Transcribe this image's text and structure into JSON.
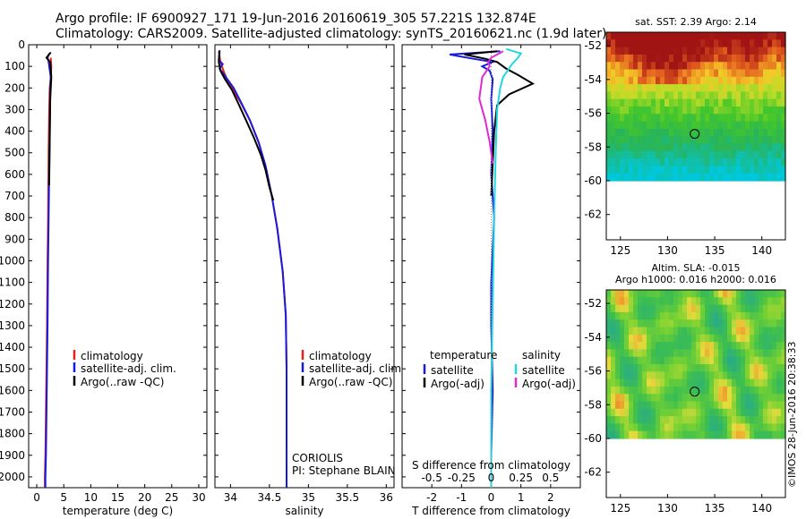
{
  "header": {
    "title_line1": "Argo profile: IF 6900927_171 19-Jun-2016 20160619_305 57.221S 132.874E",
    "title_line2": "Climatology: CARS2009. Satellite-adjusted climatology: synTS_20160621.nc (1.9d later)"
  },
  "colors": {
    "climatology": "#e8201a",
    "satellite": "#1a1adc",
    "argo": "#000000",
    "salinity_satellite": "#22d8e0",
    "salinity_argo": "#e02ad0"
  },
  "depth_axis": {
    "ylim": [
      0,
      2050
    ],
    "ticks": [
      "0",
      "100",
      "200",
      "300",
      "400",
      "500",
      "600",
      "700",
      "800",
      "900",
      "1000",
      "1100",
      "1200",
      "1300",
      "1400",
      "1500",
      "1600",
      "1700",
      "1800",
      "1900",
      "2000"
    ]
  },
  "chart_data": [
    {
      "id": "temperature",
      "type": "line",
      "xlabel": "temperature (deg C)",
      "xlim": [
        -1.5,
        31.5
      ],
      "xticks": [
        0,
        5,
        10,
        15,
        20,
        25,
        30
      ],
      "xtick_labels": [
        "0",
        "5",
        "10",
        "15",
        "20",
        "25",
        "30"
      ],
      "legend": [
        "climatology",
        "satellite-adj. clim.",
        "Argo(..raw -QC)"
      ],
      "series": [
        {
          "name": "climatology",
          "color_key": "climatology",
          "x": [
            2.6,
            2.7,
            2.6,
            2.4,
            2.3,
            2.2,
            2.1,
            2.0,
            1.9,
            1.8,
            1.7,
            1.6,
            1.5,
            1.5
          ],
          "depth": [
            60,
            100,
            150,
            200,
            300,
            500,
            800,
            1000,
            1300,
            1500,
            1700,
            1900,
            2000,
            2050
          ]
        },
        {
          "name": "satellite-adj. clim.",
          "color_key": "satellite",
          "x": [
            2.3,
            2.0,
            2.2,
            2.6,
            2.5,
            2.4,
            2.3,
            2.1,
            2.0,
            1.9,
            1.8,
            1.7,
            1.6,
            1.6
          ],
          "depth": [
            40,
            60,
            80,
            150,
            200,
            400,
            600,
            1000,
            1300,
            1500,
            1700,
            1900,
            2000,
            2050
          ]
        },
        {
          "name": "Argo(..raw -QC)",
          "color_key": "argo",
          "x": [
            2.6,
            1.8,
            2.5,
            2.7,
            2.5,
            2.4,
            2.3
          ],
          "depth": [
            35,
            60,
            80,
            150,
            250,
            450,
            650
          ]
        }
      ]
    },
    {
      "id": "salinity",
      "type": "line",
      "xlabel": "salinity",
      "xlim": [
        33.8,
        36.1
      ],
      "xticks": [
        34,
        34.5,
        35,
        35.5,
        36
      ],
      "xtick_labels": [
        "34",
        "34.5",
        "35",
        "35.5",
        "36"
      ],
      "legend": [
        "climatology",
        "satellite-adj. clim.",
        "Argo(..raw -QC)"
      ],
      "annotation": [
        "CORIOLIS",
        "PI: Stephane BLAIN"
      ],
      "series": [
        {
          "name": "climatology",
          "color_key": "climatology",
          "x": [
            33.85,
            33.87,
            33.92,
            33.98,
            34.12,
            34.25,
            34.36,
            34.45,
            34.53,
            34.6,
            34.67,
            34.71,
            34.72,
            34.72,
            34.72
          ],
          "depth": [
            30,
            80,
            130,
            180,
            260,
            350,
            450,
            560,
            700,
            850,
            1050,
            1250,
            1500,
            1800,
            2050
          ]
        },
        {
          "name": "satellite-adj. clim.",
          "color_key": "satellite",
          "x": [
            33.86,
            33.85,
            33.9,
            33.86,
            33.94,
            34.04,
            34.14,
            34.25,
            34.36,
            34.45,
            34.53,
            34.6,
            34.67,
            34.71,
            34.72,
            34.72,
            34.72
          ],
          "depth": [
            25,
            70,
            90,
            110,
            150,
            200,
            270,
            350,
            450,
            560,
            700,
            850,
            1050,
            1250,
            1500,
            1800,
            2050
          ]
        },
        {
          "name": "Argo(..raw -QC)",
          "color_key": "argo",
          "x": [
            33.86,
            33.85,
            33.87,
            33.93,
            34.02,
            34.11,
            34.2,
            34.3,
            34.39,
            34.45,
            34.5,
            34.55
          ],
          "depth": [
            30,
            80,
            120,
            160,
            210,
            280,
            350,
            430,
            510,
            580,
            660,
            720
          ]
        }
      ]
    },
    {
      "id": "difference",
      "type": "line",
      "xlabel": "T difference from climatology",
      "xlabel_top": "S difference from climatology",
      "xlim": [
        -3,
        3
      ],
      "xticks": [
        -2,
        -1,
        0,
        1,
        2
      ],
      "xtick_labels": [
        "-2",
        "-1",
        "0",
        "1",
        "2"
      ],
      "top_tick_labels": [
        "-0.5",
        "-0.25",
        "0",
        "0.25",
        "0.5"
      ],
      "legend_temperature_title": "temperature",
      "legend_salinity_title": "salinity",
      "legend_temperature": [
        "satellite",
        "Argo(-adj)"
      ],
      "legend_salinity": [
        "satellite",
        "Argo(-adj)"
      ],
      "series": [
        {
          "name": "T satellite",
          "color_key": "satellite",
          "x": [
            0.3,
            -1.4,
            -0.6,
            0.05,
            -0.3,
            -0.05,
            0.05,
            0.0,
            0.05,
            0.0,
            0.1,
            0.0,
            0.0,
            0.05,
            0.0,
            0.0
          ],
          "depth": [
            30,
            45,
            65,
            80,
            100,
            120,
            160,
            250,
            400,
            600,
            800,
            1100,
            1300,
            1600,
            1900,
            2050
          ]
        },
        {
          "name": "T Argo(-adj)",
          "color_key": "argo",
          "x": [
            0.2,
            -0.9,
            -0.2,
            0.2,
            0.5,
            0.9,
            1.4,
            0.6,
            0.2,
            0.1,
            0.05,
            0.0
          ],
          "depth": [
            30,
            45,
            65,
            80,
            110,
            140,
            180,
            230,
            280,
            400,
            550,
            700
          ]
        },
        {
          "name": "S satellite",
          "color_key": "salinity_satellite",
          "x": [
            0.5,
            1.0,
            0.9,
            0.7,
            0.6,
            0.4,
            0.3,
            0.2,
            0.15,
            0.1,
            0.05,
            0.0,
            0.0
          ],
          "depth": [
            20,
            40,
            60,
            90,
            110,
            150,
            200,
            300,
            500,
            800,
            1200,
            1600,
            2050
          ]
        },
        {
          "name": "S Argo(-adj)",
          "color_key": "salinity_argo",
          "x": [
            0.4,
            0.0,
            -0.1,
            -0.05,
            -0.3,
            -0.4,
            -0.2,
            -0.05,
            0.05
          ],
          "depth": [
            30,
            60,
            80,
            100,
            150,
            250,
            350,
            450,
            550
          ]
        }
      ]
    },
    {
      "id": "sst_map",
      "type": "heatmap",
      "title": "sat. SST: 2.39  Argo: 2.14",
      "xlim": [
        123.5,
        142.5
      ],
      "ylim": [
        -63.5,
        -51.2
      ],
      "xticks": [
        125,
        130,
        135,
        140
      ],
      "xtick_labels": [
        "125",
        "130",
        "135",
        "140"
      ],
      "yticks": [
        -52,
        -54,
        -56,
        -58,
        -60,
        -62
      ],
      "ytick_labels": [
        "-52",
        "-54",
        "-56",
        "-58",
        "-60",
        "-62"
      ],
      "data_extent_lat": [
        -60,
        -51.2
      ],
      "argo_marker": {
        "lon": 132.874,
        "lat": -57.221
      }
    },
    {
      "id": "sla_map",
      "type": "heatmap",
      "title_line1": "Altim. SLA: -0.015",
      "title_line2": "Argo h1000: 0.016 h2000: 0.016",
      "xlim": [
        123.5,
        142.5
      ],
      "ylim": [
        -63.5,
        -51.2
      ],
      "xticks": [
        125,
        130,
        135,
        140
      ],
      "xtick_labels": [
        "125",
        "130",
        "135",
        "140"
      ],
      "yticks": [
        -52,
        -54,
        -56,
        -58,
        -60,
        -62
      ],
      "ytick_labels": [
        "-52",
        "-54",
        "-56",
        "-58",
        "-60",
        "-62"
      ],
      "data_extent_lat": [
        -60,
        -51.2
      ],
      "argo_marker": {
        "lon": 132.874,
        "lat": -57.221
      }
    }
  ],
  "footer": {
    "stamp": "©IMOS 28-Jun-2016 20:38:33"
  }
}
